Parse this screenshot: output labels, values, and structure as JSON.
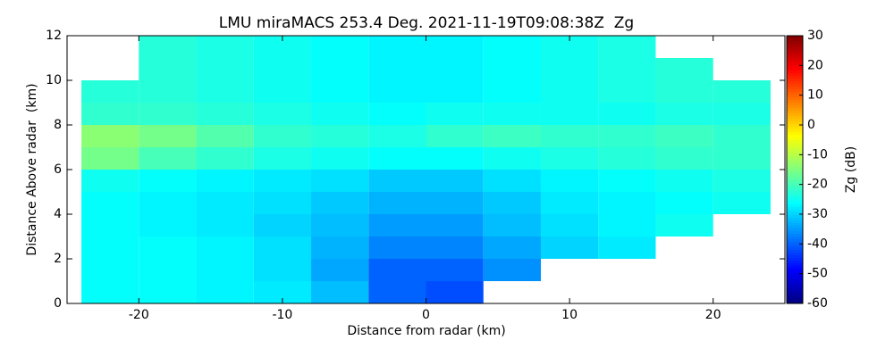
{
  "chart_data": {
    "type": "heatmap",
    "title": "LMU miraMACS 253.4 Deg. 2021-11-19T09:08:38Z  Zg",
    "xlabel": "Distance from radar (km)",
    "ylabel": "Distance Above radar  (km)",
    "colorbar_label": "Zg (dB)",
    "colormap": "jet",
    "x": [
      -24,
      -20,
      -16,
      -12,
      -8,
      -4,
      0,
      4,
      8,
      12,
      16,
      20,
      24
    ],
    "y": [
      0,
      1,
      2,
      3,
      4,
      5,
      6,
      7,
      8,
      9,
      10,
      11,
      12
    ],
    "values": [
      [
        -26,
        -26,
        -27,
        -28,
        -32,
        -40,
        -42,
        null,
        null,
        null,
        null,
        null
      ],
      [
        -26,
        -26,
        -27,
        -29,
        -34,
        -40,
        -40,
        -36,
        null,
        null,
        null,
        null
      ],
      [
        -26,
        -26,
        -27,
        -29,
        -33,
        -37,
        -37,
        -34,
        -30,
        -28,
        null,
        null
      ],
      [
        -26,
        -27,
        -28,
        -30,
        -32,
        -35,
        -35,
        -32,
        -29,
        -27,
        -25,
        null
      ],
      [
        -26,
        -27,
        -28,
        -29,
        -31,
        -33,
        -33,
        -31,
        -28,
        -27,
        -26,
        -25
      ],
      [
        -25,
        -26,
        -27,
        -28,
        -29,
        -31,
        -31,
        -29,
        -27,
        -26,
        -25,
        -24
      ],
      [
        -16,
        -20,
        -22,
        -24,
        -25,
        -26,
        -26,
        -25,
        -24,
        -23,
        -22,
        -22
      ],
      [
        -14,
        -16,
        -19,
        -22,
        -23,
        -24,
        -22,
        -21,
        -22,
        -22,
        -21,
        -22
      ],
      [
        -22,
        -22,
        -23,
        -24,
        -25,
        -26,
        -25,
        -25,
        -25,
        -25,
        -24,
        -24
      ],
      [
        -23,
        -23,
        -24,
        -25,
        -26,
        -27,
        -27,
        -26,
        -25,
        -24,
        -23,
        -23
      ],
      [
        null,
        -23,
        -24,
        -25,
        -26,
        -27,
        -27,
        -26,
        -25,
        -24,
        -23,
        null
      ],
      [
        null,
        -23,
        -24,
        -25,
        -26,
        -27,
        -27,
        -26,
        -25,
        -24,
        null,
        null
      ]
    ],
    "xlim": [
      -25,
      25
    ],
    "xticks": [
      -20,
      -10,
      0,
      10,
      20
    ],
    "ylim": [
      0,
      12
    ],
    "yticks": [
      0,
      2,
      4,
      6,
      8,
      10,
      12
    ],
    "zlim": [
      -60,
      30
    ],
    "zticks": [
      -60,
      -50,
      -40,
      -30,
      -20,
      -10,
      0,
      10,
      20,
      30
    ]
  }
}
